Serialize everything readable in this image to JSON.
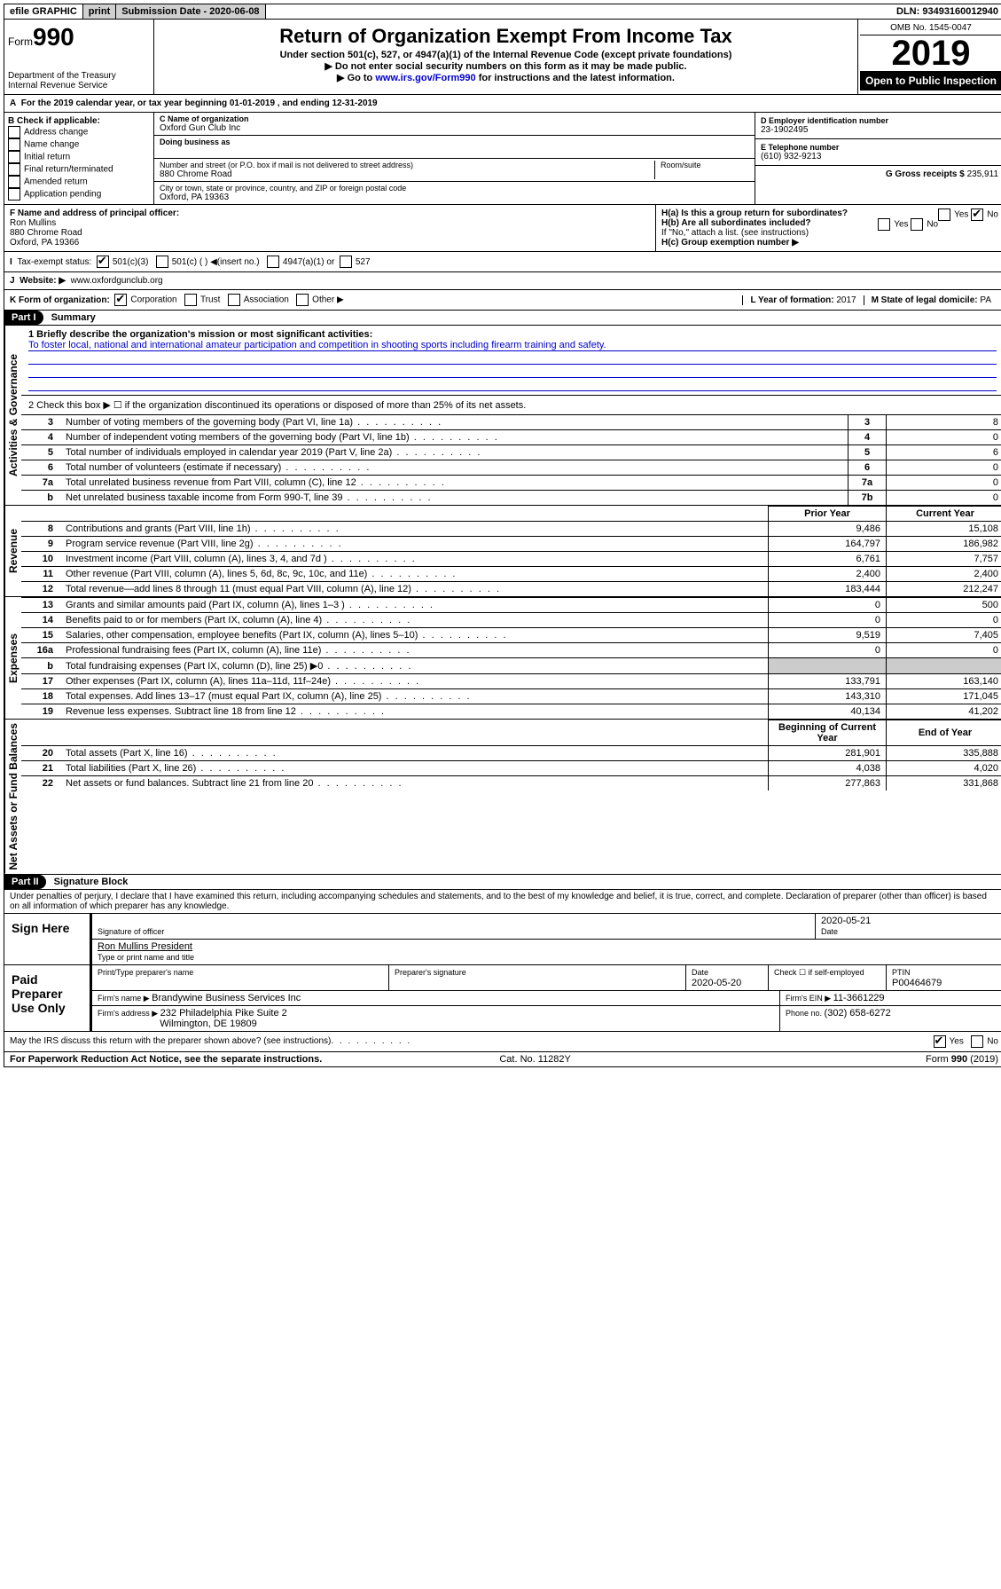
{
  "topbar": {
    "efile": "efile GRAPHIC",
    "print": "print",
    "subdate_label": "Submission Date - ",
    "subdate": "2020-06-08",
    "dln_label": "DLN: ",
    "dln": "93493160012940"
  },
  "header": {
    "form_prefix": "Form",
    "form_number": "990",
    "dept1": "Department of the Treasury",
    "dept2": "Internal Revenue Service",
    "title": "Return of Organization Exempt From Income Tax",
    "sub1": "Under section 501(c), 527, or 4947(a)(1) of the Internal Revenue Code (except private foundations)",
    "sub2": "Do not enter social security numbers on this form as it may be made public.",
    "sub3a": "Go to ",
    "sub3_link": "www.irs.gov/Form990",
    "sub3b": " for instructions and the latest information.",
    "omb": "OMB No. 1545-0047",
    "year": "2019",
    "open": "Open to Public Inspection"
  },
  "line_a": "For the 2019 calendar year, or tax year beginning 01-01-2019   , and ending 12-31-2019",
  "section_b": {
    "label": "B Check if applicable:",
    "opts": [
      "Address change",
      "Name change",
      "Initial return",
      "Final return/terminated",
      "Amended return",
      "Application pending"
    ]
  },
  "section_c": {
    "name_label": "C Name of organization",
    "name": "Oxford Gun Club Inc",
    "dba_label": "Doing business as",
    "addr_label": "Number and street (or P.O. box if mail is not delivered to street address)",
    "room_label": "Room/suite",
    "addr": "880 Chrome Road",
    "city_label": "City or town, state or province, country, and ZIP or foreign postal code",
    "city": "Oxford, PA  19363"
  },
  "section_d": {
    "ein_label": "D Employer identification number",
    "ein": "23-1902495",
    "tel_label": "E Telephone number",
    "tel": "(610) 932-9213",
    "gross_label": "G Gross receipts $ ",
    "gross": "235,911"
  },
  "section_f": {
    "label": "F  Name and address of principal officer:",
    "name": "Ron Mullins",
    "addr1": "880 Chrome Road",
    "addr2": "Oxford, PA  19366"
  },
  "section_h": {
    "ha": "H(a)  Is this a group return for subordinates?",
    "hb": "H(b)  Are all subordinates included?",
    "hb_note": "If \"No,\" attach a list. (see instructions)",
    "hc": "H(c)  Group exemption number ▶"
  },
  "row_i": {
    "label": "Tax-exempt status:",
    "opt1": "501(c)(3)",
    "opt2": "501(c) (  ) ◀(insert no.)",
    "opt3": "4947(a)(1) or",
    "opt4": "527"
  },
  "row_j": {
    "label": "Website: ▶",
    "value": "www.oxfordgunclub.org"
  },
  "row_k": {
    "label": "K Form of organization:",
    "opts": [
      "Corporation",
      "Trust",
      "Association",
      "Other ▶"
    ],
    "l_label": "L Year of formation: ",
    "l_val": "2017",
    "m_label": "M State of legal domicile: ",
    "m_val": "PA"
  },
  "part1": {
    "header": "Part I",
    "title": "Summary",
    "q1_label": "1  Briefly describe the organization's mission or most significant activities:",
    "q1_text": "To foster local, national and international amateur participation and competition in shooting sports including firearm training and safety.",
    "q2": "2   Check this box ▶ ☐  if the organization discontinued its operations or disposed of more than 25% of its net assets.",
    "lines_gov": [
      {
        "n": "3",
        "t": "Number of voting members of the governing body (Part VI, line 1a)",
        "box": "3",
        "v": "8"
      },
      {
        "n": "4",
        "t": "Number of independent voting members of the governing body (Part VI, line 1b)",
        "box": "4",
        "v": "0"
      },
      {
        "n": "5",
        "t": "Total number of individuals employed in calendar year 2019 (Part V, line 2a)",
        "box": "5",
        "v": "6"
      },
      {
        "n": "6",
        "t": "Total number of volunteers (estimate if necessary)",
        "box": "6",
        "v": "0"
      },
      {
        "n": "7a",
        "t": "Total unrelated business revenue from Part VIII, column (C), line 12",
        "box": "7a",
        "v": "0"
      },
      {
        "n": " b",
        "t": "Net unrelated business taxable income from Form 990-T, line 39",
        "box": "7b",
        "v": "0"
      }
    ],
    "col_prior": "Prior Year",
    "col_current": "Current Year",
    "revenue": [
      {
        "n": "8",
        "t": "Contributions and grants (Part VIII, line 1h)",
        "p": "9,486",
        "c": "15,108"
      },
      {
        "n": "9",
        "t": "Program service revenue (Part VIII, line 2g)",
        "p": "164,797",
        "c": "186,982"
      },
      {
        "n": "10",
        "t": "Investment income (Part VIII, column (A), lines 3, 4, and 7d )",
        "p": "6,761",
        "c": "7,757"
      },
      {
        "n": "11",
        "t": "Other revenue (Part VIII, column (A), lines 5, 6d, 8c, 9c, 10c, and 11e)",
        "p": "2,400",
        "c": "2,400"
      },
      {
        "n": "12",
        "t": "Total revenue—add lines 8 through 11 (must equal Part VIII, column (A), line 12)",
        "p": "183,444",
        "c": "212,247"
      }
    ],
    "expenses": [
      {
        "n": "13",
        "t": "Grants and similar amounts paid (Part IX, column (A), lines 1–3 )",
        "p": "0",
        "c": "500"
      },
      {
        "n": "14",
        "t": "Benefits paid to or for members (Part IX, column (A), line 4)",
        "p": "0",
        "c": "0"
      },
      {
        "n": "15",
        "t": "Salaries, other compensation, employee benefits (Part IX, column (A), lines 5–10)",
        "p": "9,519",
        "c": "7,405"
      },
      {
        "n": "16a",
        "t": "Professional fundraising fees (Part IX, column (A), line 11e)",
        "p": "0",
        "c": "0"
      },
      {
        "n": "b",
        "t": "Total fundraising expenses (Part IX, column (D), line 25) ▶0",
        "p": "",
        "c": ""
      },
      {
        "n": "17",
        "t": "Other expenses (Part IX, column (A), lines 11a–11d, 11f–24e)",
        "p": "133,791",
        "c": "163,140"
      },
      {
        "n": "18",
        "t": "Total expenses. Add lines 13–17 (must equal Part IX, column (A), line 25)",
        "p": "143,310",
        "c": "171,045"
      },
      {
        "n": "19",
        "t": "Revenue less expenses. Subtract line 18 from line 12",
        "p": "40,134",
        "c": "41,202"
      }
    ],
    "col_begin": "Beginning of Current Year",
    "col_end": "End of Year",
    "netassets": [
      {
        "n": "20",
        "t": "Total assets (Part X, line 16)",
        "p": "281,901",
        "c": "335,888"
      },
      {
        "n": "21",
        "t": "Total liabilities (Part X, line 26)",
        "p": "4,038",
        "c": "4,020"
      },
      {
        "n": "22",
        "t": "Net assets or fund balances. Subtract line 21 from line 20",
        "p": "277,863",
        "c": "331,868"
      }
    ],
    "vert_gov": "Activities & Governance",
    "vert_rev": "Revenue",
    "vert_exp": "Expenses",
    "vert_net": "Net Assets or Fund Balances"
  },
  "part2": {
    "header": "Part II",
    "title": "Signature Block",
    "decl": "Under penalties of perjury, I declare that I have examined this return, including accompanying schedules and statements, and to the best of my knowledge and belief, it is true, correct, and complete. Declaration of preparer (other than officer) is based on all information of which preparer has any knowledge.",
    "sign_here": "Sign Here",
    "sig_officer": "Signature of officer",
    "sig_date": "2020-05-21",
    "date_label": "Date",
    "officer_name": "Ron Mullins  President",
    "type_name": "Type or print name and title",
    "paid_prep": "Paid Preparer Use Only",
    "prep_name_label": "Print/Type preparer's name",
    "prep_sig_label": "Preparer's signature",
    "prep_date": "2020-05-20",
    "check_self": "Check ☐ if self-employed",
    "ptin_label": "PTIN",
    "ptin": "P00464679",
    "firm_name_label": "Firm's name    ▶ ",
    "firm_name": "Brandywine Business Services Inc",
    "firm_ein_label": "Firm's EIN ▶ ",
    "firm_ein": "11-3661229",
    "firm_addr_label": "Firm's address ▶ ",
    "firm_addr1": "232 Philadelphia Pike Suite 2",
    "firm_addr2": "Wilmington, DE  19809",
    "phone_label": "Phone no. ",
    "phone": "(302) 658-6272",
    "discuss": "May the IRS discuss this return with the preparer shown above? (see instructions)",
    "yes": "Yes",
    "no": "No"
  },
  "footer": {
    "left": "For Paperwork Reduction Act Notice, see the separate instructions.",
    "mid": "Cat. No. 11282Y",
    "right": "Form 990 (2019)"
  }
}
